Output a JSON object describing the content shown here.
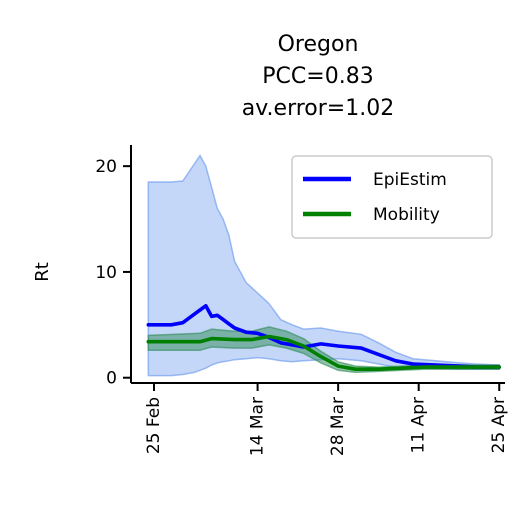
{
  "chart_data": {
    "type": "line",
    "title": [
      "Oregon",
      "PCC=0.83",
      "av.error=1.02"
    ],
    "xlabel": "",
    "ylabel": "Rt",
    "x_ticks": [
      {
        "label": "25 Feb",
        "date": "2020-02-25"
      },
      {
        "label": "14 Mar",
        "date": "2020-03-14"
      },
      {
        "label": "28 Mar",
        "date": "2020-03-28"
      },
      {
        "label": "11 Apr",
        "date": "2020-04-11"
      },
      {
        "label": "25 Apr",
        "date": "2020-04-25"
      }
    ],
    "y_ticks": [
      0,
      10,
      20
    ],
    "xlim": [
      "2020-02-21",
      "2020-04-26"
    ],
    "ylim": [
      -0.5,
      22
    ],
    "legend": {
      "position": "top-right",
      "entries": [
        "EpiEstim",
        "Mobility"
      ]
    },
    "series": [
      {
        "name": "EpiEstim",
        "color": "#0000ff",
        "band_color": "#6495ed",
        "points": [
          [
            "2020-02-24",
            5.0,
            0.2,
            18.5
          ],
          [
            "2020-02-28",
            5.0,
            0.2,
            18.5
          ],
          [
            "2020-03-01",
            5.2,
            0.3,
            18.6
          ],
          [
            "2020-03-03",
            6.0,
            0.5,
            20.2
          ],
          [
            "2020-03-04",
            6.4,
            0.7,
            21.0
          ],
          [
            "2020-03-05",
            6.8,
            0.9,
            20.0
          ],
          [
            "2020-03-06",
            5.8,
            1.2,
            18.0
          ],
          [
            "2020-03-07",
            5.9,
            1.4,
            16.0
          ],
          [
            "2020-03-08",
            5.5,
            1.5,
            15.0
          ],
          [
            "2020-03-09",
            5.1,
            1.6,
            13.5
          ],
          [
            "2020-03-10",
            4.7,
            1.7,
            11.0
          ],
          [
            "2020-03-12",
            4.3,
            1.8,
            9.0
          ],
          [
            "2020-03-14",
            4.2,
            1.9,
            8.0
          ],
          [
            "2020-03-16",
            3.8,
            1.8,
            7.0
          ],
          [
            "2020-03-18",
            3.3,
            1.6,
            5.5
          ],
          [
            "2020-03-20",
            3.1,
            1.5,
            5.0
          ],
          [
            "2020-03-22",
            2.9,
            1.6,
            4.6
          ],
          [
            "2020-03-25",
            3.2,
            1.7,
            4.7
          ],
          [
            "2020-03-28",
            3.0,
            1.8,
            4.4
          ],
          [
            "2020-04-01",
            2.8,
            1.6,
            4.1
          ],
          [
            "2020-04-04",
            2.2,
            1.3,
            3.3
          ],
          [
            "2020-04-07",
            1.6,
            1.0,
            2.4
          ],
          [
            "2020-04-10",
            1.3,
            0.9,
            1.8
          ],
          [
            "2020-04-14",
            1.2,
            0.9,
            1.6
          ],
          [
            "2020-04-18",
            1.1,
            0.8,
            1.4
          ],
          [
            "2020-04-21",
            1.0,
            0.8,
            1.3
          ],
          [
            "2020-04-25",
            1.0,
            0.8,
            1.2
          ]
        ]
      },
      {
        "name": "Mobility",
        "color": "#008000",
        "band_color": "#2e8b57",
        "points": [
          [
            "2020-02-24",
            3.4,
            2.6,
            4.0
          ],
          [
            "2020-03-04",
            3.4,
            2.6,
            4.2
          ],
          [
            "2020-03-06",
            3.7,
            2.9,
            4.6
          ],
          [
            "2020-03-10",
            3.6,
            2.8,
            4.4
          ],
          [
            "2020-03-13",
            3.6,
            2.8,
            4.4
          ],
          [
            "2020-03-16",
            3.9,
            3.1,
            4.8
          ],
          [
            "2020-03-19",
            3.6,
            2.8,
            4.4
          ],
          [
            "2020-03-22",
            3.0,
            2.3,
            3.7
          ],
          [
            "2020-03-25",
            2.0,
            1.4,
            2.5
          ],
          [
            "2020-03-28",
            1.1,
            0.7,
            1.5
          ],
          [
            "2020-03-31",
            0.8,
            0.5,
            1.1
          ],
          [
            "2020-04-04",
            0.8,
            0.6,
            1.0
          ],
          [
            "2020-04-08",
            0.9,
            0.7,
            1.1
          ],
          [
            "2020-04-12",
            1.0,
            0.8,
            1.2
          ],
          [
            "2020-04-16",
            1.0,
            0.8,
            1.2
          ],
          [
            "2020-04-20",
            1.0,
            0.8,
            1.2
          ],
          [
            "2020-04-25",
            1.0,
            0.8,
            1.2
          ]
        ]
      }
    ]
  }
}
